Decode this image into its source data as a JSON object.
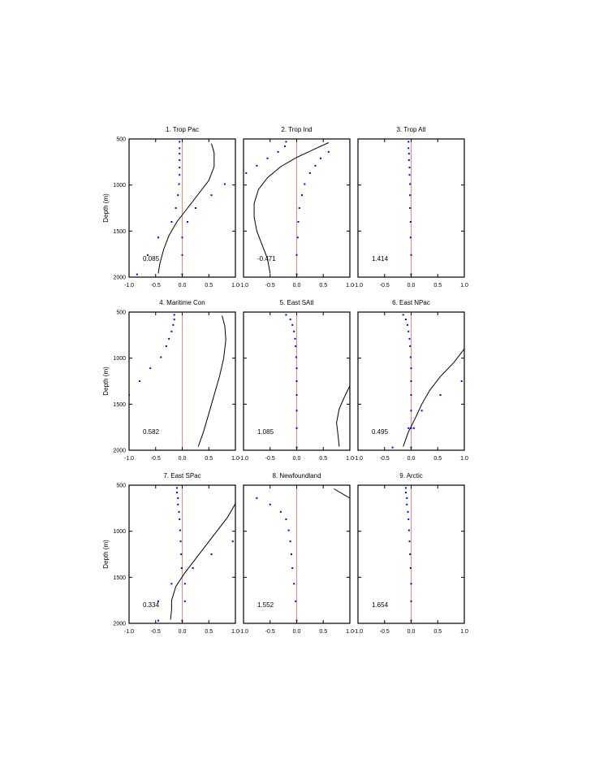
{
  "chart_data": {
    "type": "line",
    "ylabel": "Depth (m)",
    "xlim": [
      -1.0,
      1.0
    ],
    "ylim": [
      2000,
      500
    ],
    "x_ticks": [
      "-1.0",
      "-0.5",
      "0.0",
      "0.5",
      "1.0"
    ],
    "y_ticks": [
      "500",
      "1000",
      "1500",
      "2000"
    ],
    "colors": {
      "zero_line": "#ff8080",
      "dots": "#0000ff",
      "curve": "#000000"
    },
    "panels": [
      {
        "title": "1. Trop Pac",
        "value": "0.085",
        "dots": [
          [
            -0.05,
            530
          ],
          [
            -0.05,
            600
          ],
          [
            -0.05,
            660
          ],
          [
            -0.05,
            730
          ],
          [
            -0.05,
            810
          ],
          [
            -0.05,
            890
          ],
          [
            -0.06,
            990
          ],
          [
            -0.08,
            1110
          ],
          [
            -0.12,
            1250
          ],
          [
            -0.2,
            1400
          ],
          [
            -0.45,
            1570
          ],
          [
            -0.65,
            1760
          ],
          [
            -0.85,
            1970
          ],
          [
            0.1,
            1400
          ],
          [
            0.25,
            1250
          ],
          [
            0.55,
            1110
          ],
          [
            0.8,
            990
          ],
          [
            0.0,
            1570
          ],
          [
            0.0,
            1760
          ],
          [
            0.0,
            1970
          ]
        ],
        "curve": [
          [
            0.55,
            550
          ],
          [
            0.6,
            650
          ],
          [
            0.6,
            800
          ],
          [
            0.5,
            950
          ],
          [
            0.3,
            1100
          ],
          [
            0.1,
            1250
          ],
          [
            -0.1,
            1400
          ],
          [
            -0.25,
            1550
          ],
          [
            -0.35,
            1700
          ],
          [
            -0.42,
            1850
          ],
          [
            -0.45,
            1960
          ]
        ]
      },
      {
        "title": "2. Trop Ind",
        "value": "-0.471",
        "dots": [
          [
            -0.2,
            530
          ],
          [
            -0.22,
            580
          ],
          [
            -0.35,
            640
          ],
          [
            -0.55,
            710
          ],
          [
            -0.75,
            790
          ],
          [
            -0.95,
            870
          ],
          [
            0.6,
            640
          ],
          [
            0.45,
            710
          ],
          [
            0.35,
            790
          ],
          [
            0.25,
            870
          ],
          [
            0.15,
            990
          ],
          [
            0.1,
            1110
          ],
          [
            0.05,
            1250
          ],
          [
            0.03,
            1400
          ],
          [
            0.02,
            1570
          ],
          [
            0.0,
            1760
          ],
          [
            0.0,
            1970
          ]
        ],
        "curve": [
          [
            0.6,
            540
          ],
          [
            0.3,
            620
          ],
          [
            0.0,
            700
          ],
          [
            -0.3,
            800
          ],
          [
            -0.55,
            920
          ],
          [
            -0.72,
            1050
          ],
          [
            -0.8,
            1200
          ],
          [
            -0.8,
            1350
          ],
          [
            -0.75,
            1500
          ],
          [
            -0.65,
            1650
          ],
          [
            -0.55,
            1800
          ],
          [
            -0.5,
            1960
          ]
        ]
      },
      {
        "title": "3. Trop Atl",
        "value": "1.414",
        "dots": [
          [
            -0.05,
            530
          ],
          [
            -0.05,
            600
          ],
          [
            -0.04,
            660
          ],
          [
            -0.04,
            730
          ],
          [
            -0.03,
            810
          ],
          [
            -0.03,
            890
          ],
          [
            -0.02,
            990
          ],
          [
            -0.02,
            1110
          ],
          [
            -0.02,
            1250
          ],
          [
            -0.01,
            1400
          ],
          [
            -0.01,
            1570
          ],
          [
            0.0,
            1760
          ],
          [
            0.0,
            1970
          ]
        ],
        "curve": []
      },
      {
        "title": "4. Maritime Con",
        "value": "0.582",
        "dots": [
          [
            -0.15,
            530
          ],
          [
            -0.15,
            580
          ],
          [
            -0.17,
            640
          ],
          [
            -0.2,
            710
          ],
          [
            -0.25,
            790
          ],
          [
            -0.3,
            870
          ],
          [
            -0.4,
            990
          ],
          [
            -0.6,
            1110
          ],
          [
            -0.8,
            1250
          ],
          [
            -1.0,
            1400
          ]
        ],
        "curve": [
          [
            0.75,
            540
          ],
          [
            0.8,
            650
          ],
          [
            0.82,
            800
          ],
          [
            0.78,
            1000
          ],
          [
            0.7,
            1200
          ],
          [
            0.6,
            1400
          ],
          [
            0.5,
            1600
          ],
          [
            0.4,
            1800
          ],
          [
            0.3,
            1960
          ]
        ]
      },
      {
        "title": "5. East SAtl",
        "value": "1.085",
        "dots": [
          [
            -0.2,
            530
          ],
          [
            -0.12,
            580
          ],
          [
            -0.08,
            640
          ],
          [
            -0.05,
            710
          ],
          [
            -0.03,
            790
          ],
          [
            -0.02,
            870
          ],
          [
            -0.01,
            990
          ],
          [
            0.0,
            1110
          ],
          [
            0.0,
            1250
          ],
          [
            0.0,
            1400
          ],
          [
            0.0,
            1570
          ],
          [
            0.0,
            1760
          ],
          [
            0.0,
            1970
          ]
        ],
        "curve": [
          [
            1.0,
            1300
          ],
          [
            0.9,
            1420
          ],
          [
            0.8,
            1550
          ],
          [
            0.75,
            1700
          ],
          [
            0.78,
            1850
          ],
          [
            0.8,
            1960
          ]
        ]
      },
      {
        "title": "6. East NPac",
        "value": "0.495",
        "dots": [
          [
            -0.15,
            530
          ],
          [
            -0.1,
            580
          ],
          [
            -0.07,
            640
          ],
          [
            -0.05,
            710
          ],
          [
            -0.03,
            790
          ],
          [
            -0.02,
            870
          ],
          [
            -0.01,
            990
          ],
          [
            0.0,
            1110
          ],
          [
            0.0,
            1250
          ],
          [
            0.0,
            1400
          ],
          [
            0.0,
            1570
          ],
          [
            0.0,
            1760
          ],
          [
            0.0,
            1970
          ],
          [
            0.95,
            1250
          ],
          [
            0.55,
            1400
          ],
          [
            0.2,
            1570
          ],
          [
            0.05,
            1760
          ],
          [
            -0.05,
            1760
          ],
          [
            -0.35,
            1970
          ]
        ],
        "curve": [
          [
            1.0,
            900
          ],
          [
            0.8,
            1050
          ],
          [
            0.55,
            1200
          ],
          [
            0.35,
            1350
          ],
          [
            0.2,
            1500
          ],
          [
            0.08,
            1650
          ],
          [
            -0.05,
            1800
          ],
          [
            -0.15,
            1960
          ]
        ]
      },
      {
        "title": "7. East SPac",
        "value": "0.334",
        "dots": [
          [
            -0.1,
            530
          ],
          [
            -0.1,
            580
          ],
          [
            -0.08,
            640
          ],
          [
            -0.08,
            710
          ],
          [
            -0.06,
            790
          ],
          [
            -0.05,
            870
          ],
          [
            -0.04,
            990
          ],
          [
            -0.03,
            1110
          ],
          [
            -0.02,
            1250
          ],
          [
            -0.01,
            1400
          ],
          [
            -0.2,
            1570
          ],
          [
            -0.45,
            1760
          ],
          [
            -0.45,
            1970
          ],
          [
            0.95,
            1110
          ],
          [
            0.55,
            1250
          ],
          [
            0.2,
            1400
          ],
          [
            0.05,
            1570
          ],
          [
            0.05,
            1760
          ],
          [
            0.0,
            1970
          ]
        ],
        "curve": [
          [
            1.0,
            700
          ],
          [
            0.85,
            850
          ],
          [
            0.65,
            1000
          ],
          [
            0.45,
            1150
          ],
          [
            0.25,
            1300
          ],
          [
            0.05,
            1450
          ],
          [
            -0.12,
            1600
          ],
          [
            -0.2,
            1750
          ],
          [
            -0.2,
            1850
          ],
          [
            -0.22,
            1960
          ]
        ]
      },
      {
        "title": "8. Newfoundland",
        "value": "1.552",
        "dots": [
          [
            -0.75,
            640
          ],
          [
            -0.5,
            710
          ],
          [
            -0.3,
            790
          ],
          [
            -0.2,
            870
          ],
          [
            -0.15,
            990
          ],
          [
            -0.12,
            1110
          ],
          [
            -0.1,
            1250
          ],
          [
            -0.08,
            1400
          ],
          [
            -0.05,
            1570
          ],
          [
            -0.02,
            1760
          ],
          [
            0.0,
            1970
          ]
        ],
        "curve": [
          [
            0.7,
            540
          ],
          [
            1.0,
            640
          ]
        ]
      },
      {
        "title": "9. Arctic",
        "value": "1.654",
        "dots": [
          [
            -0.1,
            530
          ],
          [
            -0.1,
            580
          ],
          [
            -0.08,
            640
          ],
          [
            -0.08,
            710
          ],
          [
            -0.06,
            790
          ],
          [
            -0.05,
            870
          ],
          [
            -0.04,
            990
          ],
          [
            -0.03,
            1110
          ],
          [
            -0.02,
            1250
          ],
          [
            -0.01,
            1400
          ],
          [
            0.0,
            1570
          ],
          [
            0.0,
            1760
          ],
          [
            0.0,
            1970
          ]
        ],
        "curve": []
      }
    ]
  }
}
